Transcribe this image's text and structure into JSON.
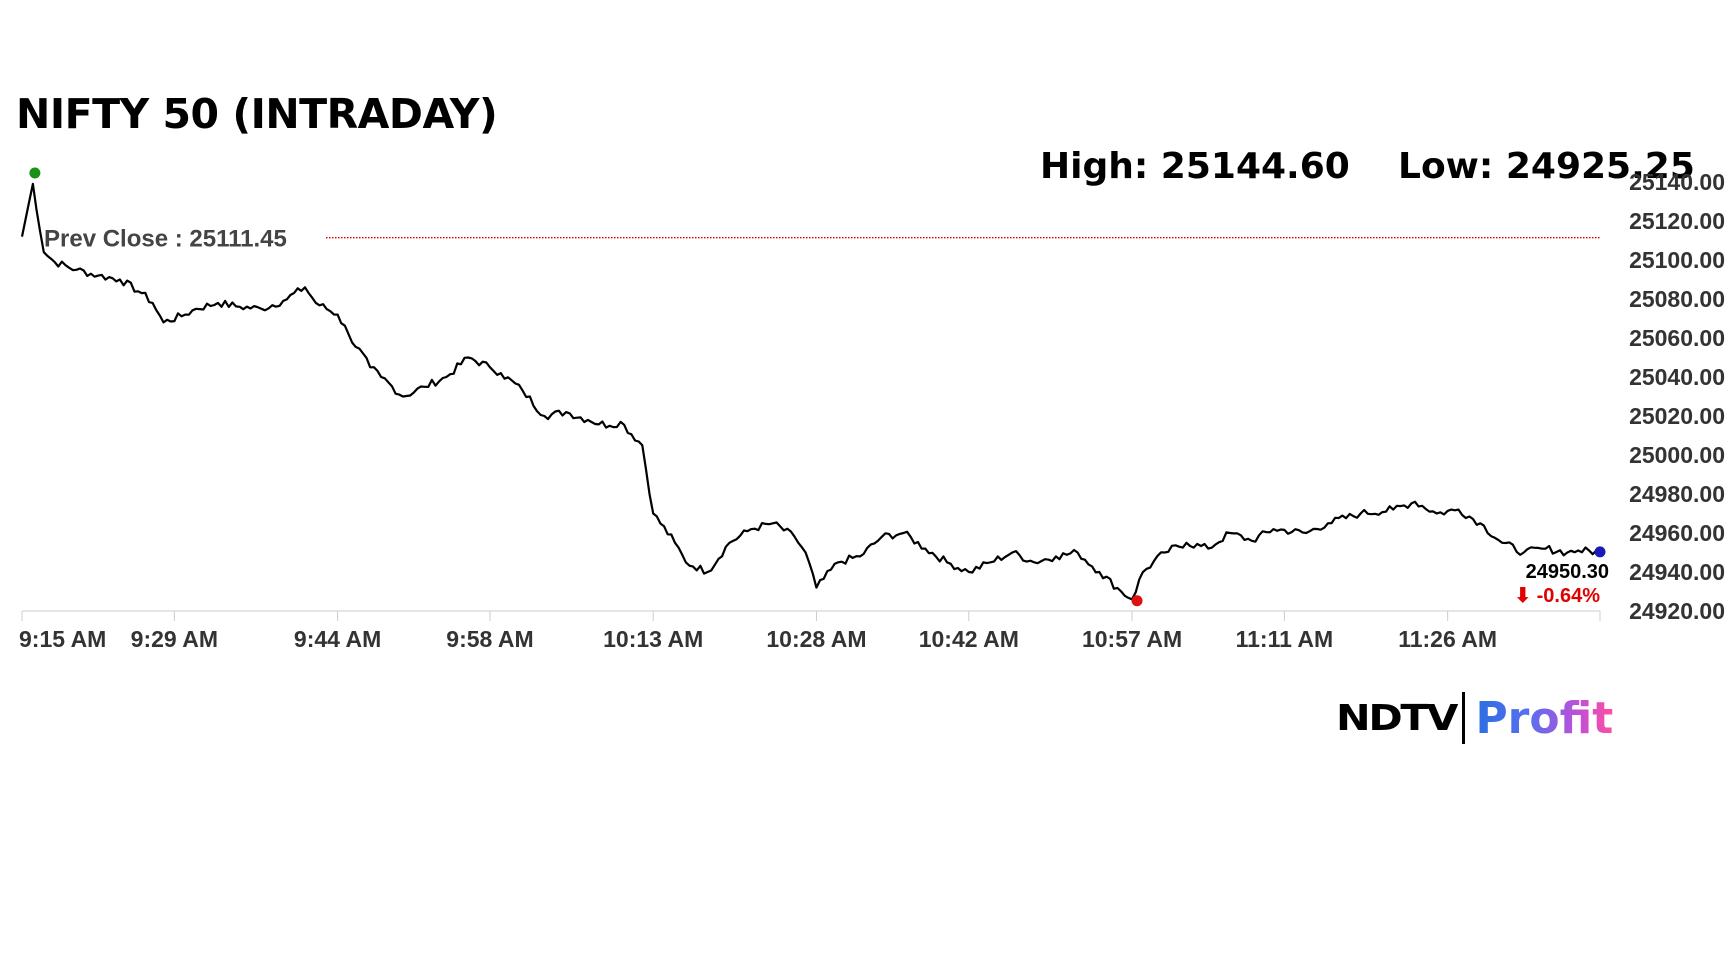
{
  "title": "NIFTY 50 (INTRADAY)",
  "high_text": "High: 25144.60",
  "low_text": "Low: 24925.25",
  "logo": {
    "brand": "NDTV",
    "product": "Profit"
  },
  "colors": {
    "line": "#000000",
    "open_marker": "#1a8f1a",
    "low_marker": "#e01010",
    "last_marker": "#1a1ab8",
    "prev_close_line": "#d40000",
    "change_text": "#e00000"
  },
  "chart_data": {
    "type": "line",
    "title": "NIFTY 50 (INTRADAY)",
    "xlabel": "",
    "ylabel": "",
    "x_ticks": [
      "9:15 AM",
      "9:29 AM",
      "9:44 AM",
      "9:58 AM",
      "10:13 AM",
      "10:28 AM",
      "10:42 AM",
      "10:57 AM",
      "11:11 AM",
      "11:26 AM"
    ],
    "y_ticks": [
      "25140.00",
      "25120.00",
      "25100.00",
      "25080.00",
      "25060.00",
      "25040.00",
      "25020.00",
      "25000.00",
      "24980.00",
      "24960.00",
      "24940.00",
      "24920.00"
    ],
    "ylim": [
      24920,
      25140
    ],
    "xlim": [
      "9:15 AM",
      "11:40 AM"
    ],
    "grid": false,
    "prev_close": {
      "label": "Prev Close : 25111.45",
      "value": 25111.45
    },
    "day_high": 25144.6,
    "day_low": 24925.25,
    "last_price": "24950.30",
    "change": "⬇ -0.64%",
    "series": [
      {
        "x": [
          "9:15",
          "9:16",
          "9:17",
          "9:18",
          "9:20",
          "9:22",
          "9:24",
          "9:26",
          "9:27",
          "9:28",
          "9:30",
          "9:31",
          "9:33",
          "9:35",
          "9:37",
          "9:39",
          "9:41",
          "9:42",
          "9:44",
          "9:45",
          "9:47",
          "9:48",
          "9:50",
          "9:52",
          "9:54",
          "9:56",
          "9:58",
          "9:59",
          "10:01",
          "10:03",
          "10:05",
          "10:07",
          "10:09",
          "10:10",
          "10:12",
          "10:13",
          "10:15",
          "10:16",
          "10:18",
          "10:20",
          "10:22",
          "10:24",
          "10:26",
          "10:27",
          "10:28",
          "10:30",
          "10:32",
          "10:34",
          "10:36",
          "10:38",
          "10:40",
          "10:42",
          "10:44",
          "10:46",
          "10:48",
          "10:50",
          "10:52",
          "10:54",
          "10:56",
          "10:57",
          "10:58",
          "11:00",
          "11:02",
          "11:04",
          "11:06",
          "11:08",
          "11:10",
          "11:13",
          "11:15",
          "11:18",
          "11:21",
          "11:23",
          "11:25",
          "11:27",
          "11:29",
          "11:31",
          "11:33",
          "11:35",
          "11:37",
          "11:38",
          "11:40"
        ],
        "y": [
          25112,
          25139,
          25104,
          25099,
          25095,
          25092,
          25090,
          25083,
          25078,
          25068,
          25072,
          25075,
          25078,
          25076,
          25075,
          25079,
          25086,
          25078,
          25072,
          25062,
          25045,
          25040,
          25030,
          25035,
          25040,
          25050,
          25045,
          25042,
          25033,
          25020,
          25022,
          25018,
          25015,
          25017,
          25005,
          24970,
          24955,
          24945,
          24940,
          24955,
          24962,
          24965,
          24958,
          24950,
          24932,
          24945,
          24948,
          24958,
          24960,
          24952,
          24945,
          24940,
          24945,
          24950,
          24945,
          24948,
          24950,
          24940,
          24930,
          24926,
          24940,
          24950,
          24955,
          24952,
          24960,
          24956,
          24962,
          24960,
          24965,
          24970,
          24972,
          24976,
          24970,
          24972,
          24965,
          24955,
          24950,
          24952,
          24950,
          24951,
          24950.3
        ]
      }
    ]
  }
}
